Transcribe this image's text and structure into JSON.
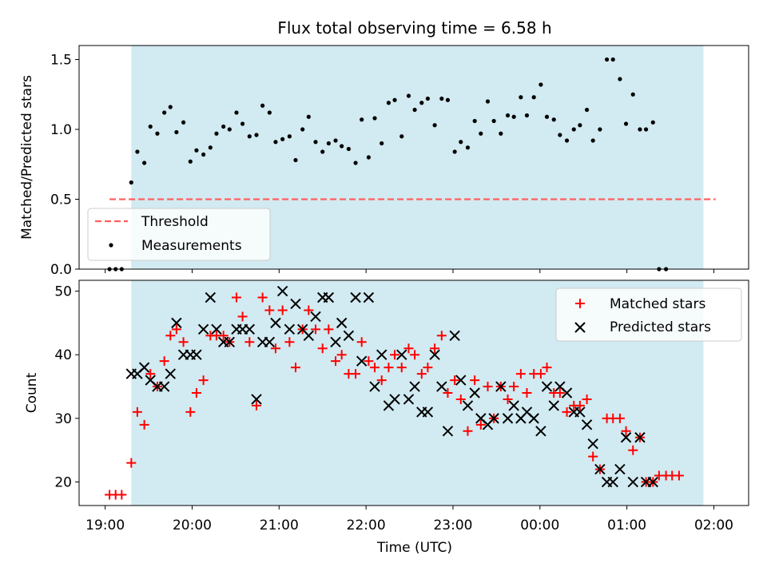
{
  "chart_data": [
    {
      "type": "scatter",
      "title": "Flux total observing time = 6.58 h",
      "ylabel": "Matched/Predicted stars",
      "xlabel": "",
      "x_range_hours": [
        18.7,
        26.4
      ],
      "ylim": [
        0,
        1.6
      ],
      "yticks": [
        0.0,
        0.5,
        1.0,
        1.5
      ],
      "ytick_labels": [
        "0.0",
        "0.5",
        "1.0",
        "1.5"
      ],
      "shaded_span_hours": [
        19.3,
        25.88
      ],
      "shade_color": "#add8e6",
      "threshold": {
        "name": "Threshold",
        "value": 0.5,
        "x_span_hours": [
          19.05,
          26.02
        ],
        "color": "#ff6060"
      },
      "legend_location": "lower-left",
      "series": [
        {
          "name": "Measurements",
          "marker": "dot",
          "color": "#000000",
          "points": [
            [
              19.05,
              0
            ],
            [
              19.12,
              0
            ],
            [
              19.19,
              0
            ],
            [
              19.3,
              0.62
            ],
            [
              19.37,
              0.84
            ],
            [
              19.45,
              0.76
            ],
            [
              19.52,
              1.02
            ],
            [
              19.6,
              0.97
            ],
            [
              19.68,
              1.12
            ],
            [
              19.75,
              1.16
            ],
            [
              19.82,
              0.98
            ],
            [
              19.9,
              1.05
            ],
            [
              19.98,
              0.77
            ],
            [
              20.05,
              0.85
            ],
            [
              20.13,
              0.82
            ],
            [
              20.21,
              0.87
            ],
            [
              20.28,
              0.97
            ],
            [
              20.36,
              1.02
            ],
            [
              20.43,
              1.0
            ],
            [
              20.51,
              1.12
            ],
            [
              20.58,
              1.04
            ],
            [
              20.66,
              0.95
            ],
            [
              20.74,
              0.96
            ],
            [
              20.81,
              1.17
            ],
            [
              20.89,
              1.12
            ],
            [
              20.96,
              0.91
            ],
            [
              21.04,
              0.93
            ],
            [
              21.12,
              0.95
            ],
            [
              21.19,
              0.78
            ],
            [
              21.27,
              1.0
            ],
            [
              21.34,
              1.09
            ],
            [
              21.42,
              0.91
            ],
            [
              21.5,
              0.84
            ],
            [
              21.57,
              0.9
            ],
            [
              21.65,
              0.92
            ],
            [
              21.72,
              0.88
            ],
            [
              21.8,
              0.86
            ],
            [
              21.88,
              0.76
            ],
            [
              21.95,
              1.07
            ],
            [
              22.03,
              0.8
            ],
            [
              22.1,
              1.08
            ],
            [
              22.18,
              0.9
            ],
            [
              22.26,
              1.19
            ],
            [
              22.33,
              1.21
            ],
            [
              22.41,
              0.95
            ],
            [
              22.49,
              1.24
            ],
            [
              22.56,
              1.14
            ],
            [
              22.64,
              1.19
            ],
            [
              22.71,
              1.22
            ],
            [
              22.79,
              1.03
            ],
            [
              22.87,
              1.22
            ],
            [
              22.94,
              1.21
            ],
            [
              23.02,
              0.84
            ],
            [
              23.09,
              0.91
            ],
            [
              23.17,
              0.87
            ],
            [
              23.25,
              1.06
            ],
            [
              23.32,
              0.97
            ],
            [
              23.4,
              1.2
            ],
            [
              23.47,
              1.06
            ],
            [
              23.55,
              0.97
            ],
            [
              23.63,
              1.1
            ],
            [
              23.7,
              1.09
            ],
            [
              23.78,
              1.23
            ],
            [
              23.85,
              1.1
            ],
            [
              23.93,
              1.23
            ],
            [
              24.01,
              1.32
            ],
            [
              24.08,
              1.09
            ],
            [
              24.16,
              1.07
            ],
            [
              24.23,
              0.96
            ],
            [
              24.31,
              0.92
            ],
            [
              24.39,
              1.0
            ],
            [
              24.46,
              1.03
            ],
            [
              24.54,
              1.14
            ],
            [
              24.61,
              0.92
            ],
            [
              24.69,
              1.0
            ],
            [
              24.77,
              1.5
            ],
            [
              24.84,
              1.5
            ],
            [
              24.92,
              1.36
            ],
            [
              24.99,
              1.04
            ],
            [
              25.07,
              1.25
            ],
            [
              25.15,
              1.0
            ],
            [
              25.22,
              1.0
            ],
            [
              25.3,
              1.05
            ],
            [
              25.37,
              0
            ],
            [
              25.45,
              0
            ]
          ]
        }
      ],
      "grid": false
    },
    {
      "type": "scatter",
      "title": "",
      "ylabel": "Count",
      "xlabel": "Time (UTC)",
      "x_range_hours": [
        18.7,
        26.4
      ],
      "ylim": [
        16.3,
        51.7
      ],
      "yticks": [
        20,
        30,
        40,
        50
      ],
      "ytick_labels": [
        "20",
        "30",
        "40",
        "50"
      ],
      "xticks_hours": [
        19,
        20,
        21,
        22,
        23,
        24,
        25,
        26
      ],
      "xtick_labels": [
        "19:00",
        "20:00",
        "21:00",
        "22:00",
        "23:00",
        "00:00",
        "01:00",
        "02:00"
      ],
      "shaded_span_hours": [
        19.3,
        25.88
      ],
      "legend_location": "top-right",
      "series": [
        {
          "name": "Matched stars",
          "marker": "plus",
          "color": "#ff0000",
          "points": [
            [
              19.05,
              18
            ],
            [
              19.12,
              18
            ],
            [
              19.19,
              18
            ],
            [
              19.3,
              23
            ],
            [
              19.37,
              31
            ],
            [
              19.45,
              29
            ],
            [
              19.52,
              37
            ],
            [
              19.6,
              35
            ],
            [
              19.68,
              39
            ],
            [
              19.75,
              43
            ],
            [
              19.82,
              44
            ],
            [
              19.9,
              42
            ],
            [
              19.98,
              31
            ],
            [
              20.05,
              34
            ],
            [
              20.13,
              36
            ],
            [
              20.21,
              43
            ],
            [
              20.28,
              43
            ],
            [
              20.36,
              43
            ],
            [
              20.43,
              42
            ],
            [
              20.51,
              49
            ],
            [
              20.58,
              46
            ],
            [
              20.66,
              42
            ],
            [
              20.74,
              32
            ],
            [
              20.81,
              49
            ],
            [
              20.89,
              47
            ],
            [
              20.96,
              41
            ],
            [
              21.04,
              47
            ],
            [
              21.12,
              42
            ],
            [
              21.19,
              38
            ],
            [
              21.27,
              44
            ],
            [
              21.34,
              47
            ],
            [
              21.42,
              44
            ],
            [
              21.5,
              41
            ],
            [
              21.57,
              44
            ],
            [
              21.65,
              39
            ],
            [
              21.72,
              40
            ],
            [
              21.8,
              37
            ],
            [
              21.88,
              37
            ],
            [
              21.95,
              42
            ],
            [
              22.03,
              39
            ],
            [
              22.1,
              38
            ],
            [
              22.18,
              36
            ],
            [
              22.26,
              38
            ],
            [
              22.33,
              40
            ],
            [
              22.41,
              38
            ],
            [
              22.49,
              41
            ],
            [
              22.56,
              40
            ],
            [
              22.64,
              37
            ],
            [
              22.71,
              38
            ],
            [
              22.79,
              41
            ],
            [
              22.87,
              43
            ],
            [
              22.94,
              34
            ],
            [
              23.02,
              36
            ],
            [
              23.09,
              33
            ],
            [
              23.17,
              28
            ],
            [
              23.25,
              36
            ],
            [
              23.32,
              29
            ],
            [
              23.4,
              35
            ],
            [
              23.47,
              30
            ],
            [
              23.55,
              35
            ],
            [
              23.63,
              33
            ],
            [
              23.7,
              35
            ],
            [
              23.78,
              37
            ],
            [
              23.85,
              34
            ],
            [
              23.93,
              37
            ],
            [
              24.01,
              37
            ],
            [
              24.08,
              38
            ],
            [
              24.16,
              34
            ],
            [
              24.23,
              34
            ],
            [
              24.31,
              31
            ],
            [
              24.39,
              32
            ],
            [
              24.46,
              32
            ],
            [
              24.54,
              33
            ],
            [
              24.61,
              24
            ],
            [
              24.69,
              22
            ],
            [
              24.77,
              30
            ],
            [
              24.84,
              30
            ],
            [
              24.92,
              30
            ],
            [
              24.99,
              28
            ],
            [
              25.07,
              25
            ],
            [
              25.15,
              27
            ],
            [
              25.22,
              20
            ],
            [
              25.3,
              20
            ],
            [
              25.37,
              21
            ],
            [
              25.45,
              21
            ],
            [
              25.52,
              21
            ],
            [
              25.6,
              21
            ]
          ]
        },
        {
          "name": "Predicted stars",
          "marker": "x",
          "color": "#000000",
          "points": [
            [
              19.3,
              37
            ],
            [
              19.37,
              37
            ],
            [
              19.45,
              38
            ],
            [
              19.52,
              36
            ],
            [
              19.6,
              35
            ],
            [
              19.68,
              35
            ],
            [
              19.75,
              37
            ],
            [
              19.82,
              45
            ],
            [
              19.9,
              40
            ],
            [
              19.98,
              40
            ],
            [
              20.05,
              40
            ],
            [
              20.13,
              44
            ],
            [
              20.21,
              49
            ],
            [
              20.28,
              44
            ],
            [
              20.36,
              42
            ],
            [
              20.43,
              42
            ],
            [
              20.51,
              44
            ],
            [
              20.58,
              44
            ],
            [
              20.66,
              44
            ],
            [
              20.74,
              33
            ],
            [
              20.81,
              42
            ],
            [
              20.89,
              42
            ],
            [
              20.96,
              45
            ],
            [
              21.04,
              50
            ],
            [
              21.12,
              44
            ],
            [
              21.19,
              48
            ],
            [
              21.27,
              44
            ],
            [
              21.34,
              43
            ],
            [
              21.42,
              46
            ],
            [
              21.5,
              49
            ],
            [
              21.57,
              49
            ],
            [
              21.65,
              42
            ],
            [
              21.72,
              45
            ],
            [
              21.8,
              43
            ],
            [
              21.88,
              49
            ],
            [
              21.95,
              39
            ],
            [
              22.03,
              49
            ],
            [
              22.1,
              35
            ],
            [
              22.18,
              40
            ],
            [
              22.26,
              32
            ],
            [
              22.33,
              33
            ],
            [
              22.41,
              40
            ],
            [
              22.49,
              33
            ],
            [
              22.56,
              35
            ],
            [
              22.64,
              31
            ],
            [
              22.71,
              31
            ],
            [
              22.79,
              40
            ],
            [
              22.87,
              35
            ],
            [
              22.94,
              28
            ],
            [
              23.02,
              43
            ],
            [
              23.09,
              36
            ],
            [
              23.17,
              32
            ],
            [
              23.25,
              34
            ],
            [
              23.32,
              30
            ],
            [
              23.4,
              29
            ],
            [
              23.47,
              30
            ],
            [
              23.55,
              35
            ],
            [
              23.63,
              30
            ],
            [
              23.7,
              32
            ],
            [
              23.78,
              30
            ],
            [
              23.85,
              31
            ],
            [
              23.93,
              30
            ],
            [
              24.01,
              28
            ],
            [
              24.08,
              35
            ],
            [
              24.16,
              32
            ],
            [
              24.23,
              35
            ],
            [
              24.31,
              34
            ],
            [
              24.39,
              31
            ],
            [
              24.46,
              31
            ],
            [
              24.54,
              29
            ],
            [
              24.61,
              26
            ],
            [
              24.69,
              22
            ],
            [
              24.77,
              20
            ],
            [
              24.84,
              20
            ],
            [
              24.92,
              22
            ],
            [
              24.99,
              27
            ],
            [
              25.07,
              20
            ],
            [
              25.15,
              27
            ],
            [
              25.22,
              20
            ],
            [
              25.3,
              20
            ]
          ]
        }
      ],
      "grid": false
    }
  ]
}
